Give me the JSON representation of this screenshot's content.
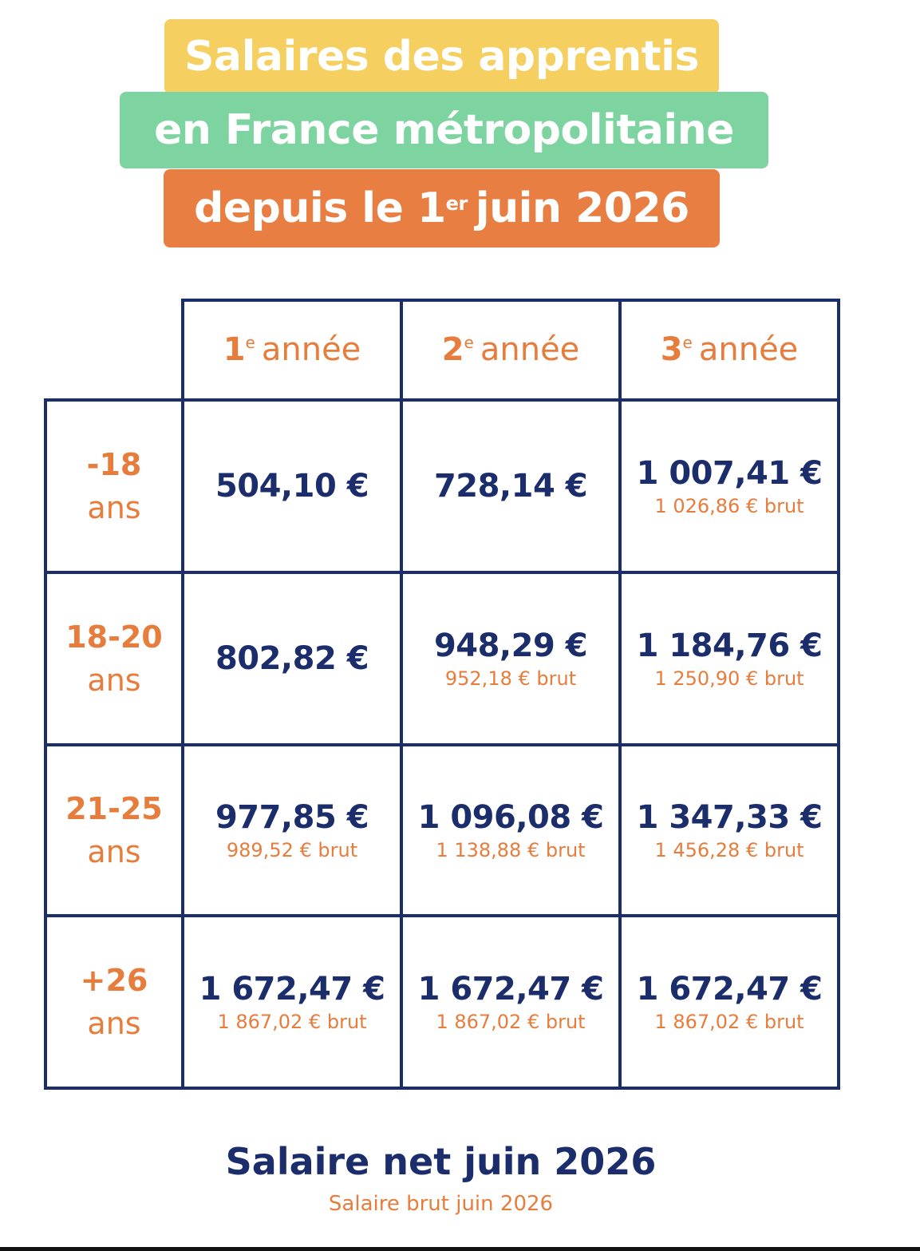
{
  "title": {
    "line1": "Salaires des apprentis",
    "line2": "en France métropolitaine",
    "line3_pre": "depuis le 1",
    "line3_sup": "er",
    "line3_post": "juin 2026"
  },
  "colors": {
    "banner1": "#f5cf5f",
    "banner2": "#7dd4a0",
    "banner3": "#e97e42",
    "navy": "#1c2d6b",
    "orange": "#e67d3c"
  },
  "columns": [
    {
      "num": "1",
      "sup": "e",
      "label": "année"
    },
    {
      "num": "2",
      "sup": "e",
      "label": "année"
    },
    {
      "num": "3",
      "sup": "e",
      "label": "année"
    }
  ],
  "rows": [
    {
      "range": "-18",
      "unit": "ans",
      "cells": [
        {
          "net": "504,10 €",
          "brut": ""
        },
        {
          "net": "728,14 €",
          "brut": ""
        },
        {
          "net": "1 007,41 €",
          "brut": "1 026,86 € brut"
        }
      ]
    },
    {
      "range": "18-20",
      "unit": "ans",
      "cells": [
        {
          "net": "802,82 €",
          "brut": ""
        },
        {
          "net": "948,29 €",
          "brut": "952,18 € brut"
        },
        {
          "net": "1 184,76 €",
          "brut": "1 250,90 € brut"
        }
      ]
    },
    {
      "range": "21-25",
      "unit": "ans",
      "cells": [
        {
          "net": "977,85 €",
          "brut": "989,52 € brut"
        },
        {
          "net": "1 096,08 €",
          "brut": "1 138,88 € brut"
        },
        {
          "net": "1 347,33 €",
          "brut": "1 456,28 € brut"
        }
      ]
    },
    {
      "range": "+26",
      "unit": "ans",
      "cells": [
        {
          "net": "1 672,47 €",
          "brut": "1 867,02 € brut"
        },
        {
          "net": "1 672,47 €",
          "brut": "1 867,02 € brut"
        },
        {
          "net": "1 672,47 €",
          "brut": "1 867,02 € brut"
        }
      ]
    }
  ],
  "legend": {
    "net": "Salaire net juin 2026",
    "brut": "Salaire brut juin 2026"
  }
}
